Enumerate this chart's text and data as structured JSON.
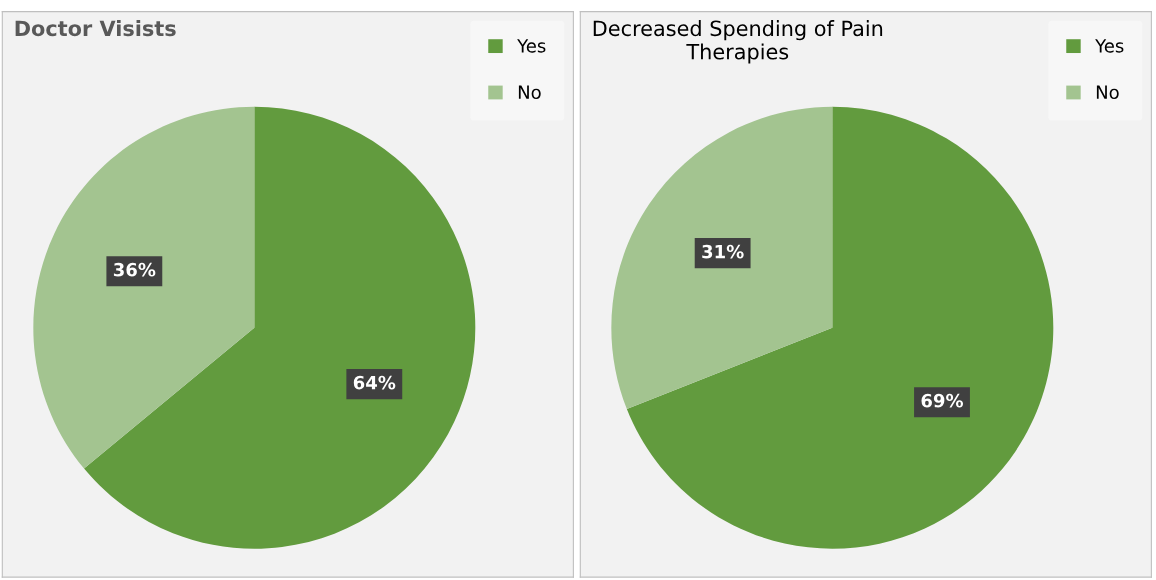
{
  "chart_data": [
    {
      "type": "pie",
      "title": "Doctor Visists",
      "categories": [
        "Yes",
        "No"
      ],
      "values": [
        64,
        36
      ],
      "colors": [
        "#629b3e",
        "#a3c490"
      ],
      "value_labels": [
        "64%",
        "36%"
      ],
      "legend": "top right"
    },
    {
      "type": "pie",
      "title": "Decreased Spending of Pain\nTherapies",
      "categories": [
        "Yes",
        "No"
      ],
      "values": [
        69,
        31
      ],
      "colors": [
        "#629b3e",
        "#a3c490"
      ],
      "value_labels": [
        "69%",
        "31%"
      ],
      "legend": "top right"
    }
  ]
}
